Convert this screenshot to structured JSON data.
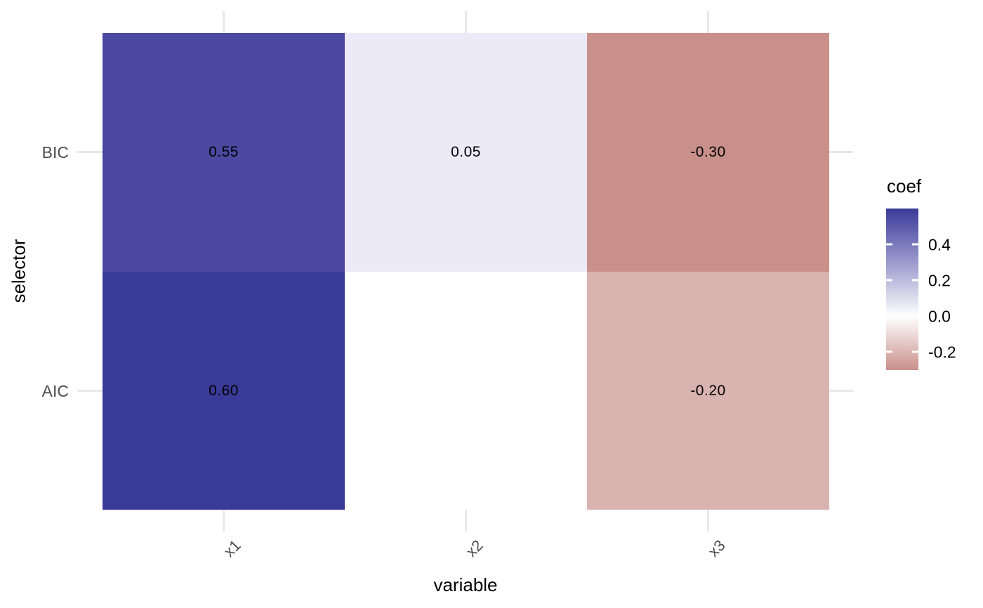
{
  "chart_data": {
    "type": "heatmap",
    "title": "",
    "xlabel": "variable",
    "ylabel": "selector",
    "x_categories": [
      "x1",
      "x2",
      "x3"
    ],
    "y_categories": [
      "BIC",
      "AIC"
    ],
    "grid": true,
    "legend_position": "right",
    "background_color": "#FFFFFF",
    "gridline_color": "#E8E8E8",
    "axis_text_color": "#4D4D4D",
    "axis_title_color": "#000000",
    "cells": [
      {
        "selector": "BIC",
        "variable": "x1",
        "value": 0.55,
        "label": "0.55",
        "color": "#4B48A0"
      },
      {
        "selector": "BIC",
        "variable": "x2",
        "value": 0.05,
        "label": "0.05",
        "color": "#ECEAF6"
      },
      {
        "selector": "BIC",
        "variable": "x3",
        "value": -0.3,
        "label": "-0.30",
        "color": "#C9908A"
      },
      {
        "selector": "AIC",
        "variable": "x1",
        "value": 0.6,
        "label": "0.60",
        "color": "#3A3B98"
      },
      {
        "selector": "AIC",
        "variable": "x2",
        "value": null,
        "label": "",
        "color": "#FFFFFF"
      },
      {
        "selector": "AIC",
        "variable": "x3",
        "value": -0.2,
        "label": "-0.20",
        "color": "#D9B3AF"
      }
    ],
    "legend": {
      "title": "coef",
      "range": [
        -0.3,
        0.6
      ],
      "tick_labels": [
        "0.4",
        "0.2",
        "0.0",
        "-0.2"
      ],
      "tick_values": [
        0.4,
        0.2,
        0.0,
        -0.2
      ],
      "high_color": "#3A3A98",
      "mid_color": "#FFFFFF",
      "low_color": "#C9908A",
      "gradient_stops": [
        {
          "pos": 0,
          "color": "#3A3A98"
        },
        {
          "pos": 22.2,
          "color": "#7B7ABD"
        },
        {
          "pos": 44.4,
          "color": "#BCBBDD"
        },
        {
          "pos": 66.7,
          "color": "#FFFFFF"
        },
        {
          "pos": 88.9,
          "color": "#DBB5B1"
        },
        {
          "pos": 100,
          "color": "#C9908A"
        }
      ]
    }
  }
}
